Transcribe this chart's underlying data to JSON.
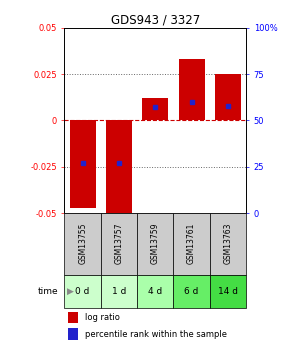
{
  "title": "GDS943 / 3327",
  "samples": [
    "GSM13755",
    "GSM13757",
    "GSM13759",
    "GSM13761",
    "GSM13763"
  ],
  "time_labels": [
    "0 d",
    "1 d",
    "4 d",
    "6 d",
    "14 d"
  ],
  "log_ratios": [
    -0.047,
    -0.055,
    0.012,
    0.033,
    0.025
  ],
  "percentile_ranks": [
    27,
    27,
    57,
    60,
    58
  ],
  "ylim_left": [
    -0.05,
    0.05
  ],
  "ylim_right": [
    0,
    100
  ],
  "bar_color": "#cc0000",
  "dot_color": "#2222cc",
  "bar_width": 0.72,
  "yticks_left": [
    -0.05,
    -0.025,
    0,
    0.025,
    0.05
  ],
  "yticks_right": [
    0,
    25,
    50,
    75,
    100
  ],
  "ytick_labels_left": [
    "-0.05",
    "-0.025",
    "0",
    "0.025",
    "0.05"
  ],
  "ytick_labels_right": [
    "0",
    "25",
    "50",
    "75",
    "100%"
  ],
  "grid_dotted": [
    -0.025,
    0.025
  ],
  "grid_zero": 0,
  "time_colors": [
    "#ccffcc",
    "#ccffcc",
    "#aaffaa",
    "#66ee66",
    "#44dd44"
  ],
  "sample_bg": "#cccccc",
  "legend_log_ratio": "log ratio",
  "legend_percentile": "percentile rank within the sample",
  "zero_line_color": "#cc0000",
  "dotted_line_color": "#666666",
  "time_label": "time"
}
